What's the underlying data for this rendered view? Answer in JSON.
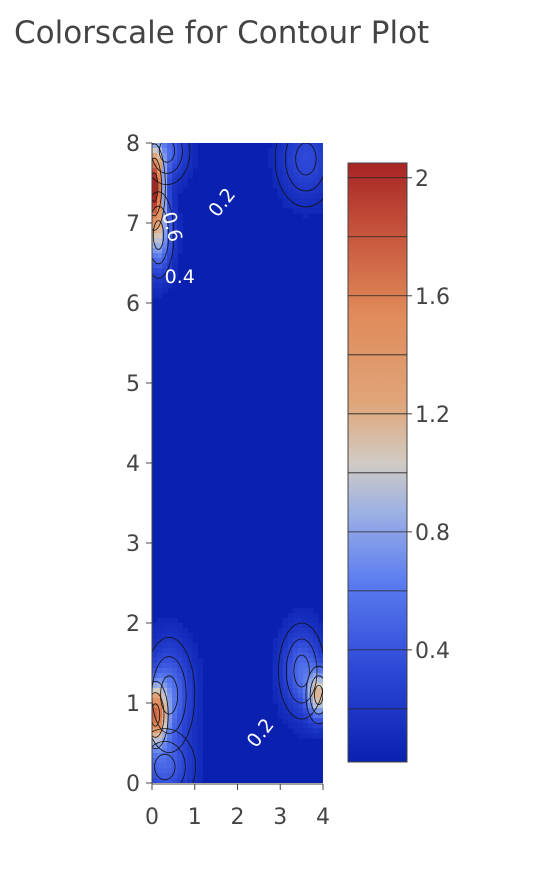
{
  "chart_data": {
    "type": "contour",
    "title": "Colorscale for Contour Plot",
    "xlabel": "",
    "ylabel": "",
    "xlim": [
      0,
      4
    ],
    "ylim": [
      0,
      8
    ],
    "x_ticks": [
      "0",
      "1",
      "2",
      "3",
      "4"
    ],
    "y_ticks": [
      "0",
      "1",
      "2",
      "3",
      "4",
      "5",
      "6",
      "7",
      "8"
    ],
    "colorbar": {
      "range": [
        0.02,
        2.05
      ],
      "ticks": [
        "0.4",
        "0.8",
        "1.2",
        "1.6",
        "2"
      ],
      "tick_values": [
        0.4,
        0.8,
        1.2,
        1.6,
        2.0
      ],
      "colorscale": [
        [
          0.0,
          "#0a21b0"
        ],
        [
          0.15,
          "#2c46d6"
        ],
        [
          0.3,
          "#5b7cf0"
        ],
        [
          0.42,
          "#9fb2e4"
        ],
        [
          0.5,
          "#d1cbc3"
        ],
        [
          0.6,
          "#e0a579"
        ],
        [
          0.75,
          "#e08a59"
        ],
        [
          0.87,
          "#c95a3f"
        ],
        [
          1.0,
          "#a82424"
        ]
      ]
    },
    "contour_labels": [
      {
        "text": "0.2",
        "x": 1.65,
        "y": 7.25,
        "angle": -52
      },
      {
        "text": "0.6",
        "x": 0.45,
        "y": 6.95,
        "angle": 75
      },
      {
        "text": "0.4",
        "x": 0.65,
        "y": 6.32,
        "angle": 0
      },
      {
        "text": "0.2",
        "x": 2.55,
        "y": 0.62,
        "angle": -52
      }
    ],
    "hotspots": [
      {
        "x": 0.05,
        "y": 7.45,
        "value": 1.95,
        "sx": 0.22,
        "sy": 0.45
      },
      {
        "x": 0.15,
        "y": 6.85,
        "value": 0.8,
        "sx": 0.3,
        "sy": 0.45
      },
      {
        "x": 0.35,
        "y": 7.9,
        "value": 0.45,
        "sx": 0.45,
        "sy": 0.35
      },
      {
        "x": 0.08,
        "y": 0.85,
        "value": 1.4,
        "sx": 0.25,
        "sy": 0.35
      },
      {
        "x": 0.4,
        "y": 1.1,
        "value": 0.55,
        "sx": 0.5,
        "sy": 0.6
      },
      {
        "x": 3.9,
        "y": 1.1,
        "value": 1.0,
        "sx": 0.25,
        "sy": 0.3
      },
      {
        "x": 3.5,
        "y": 1.4,
        "value": 0.5,
        "sx": 0.45,
        "sy": 0.5
      },
      {
        "x": 3.6,
        "y": 7.8,
        "value": 0.3,
        "sx": 0.6,
        "sy": 0.5
      },
      {
        "x": 0.3,
        "y": 0.2,
        "value": 0.4,
        "sx": 0.6,
        "sy": 0.4
      }
    ]
  }
}
